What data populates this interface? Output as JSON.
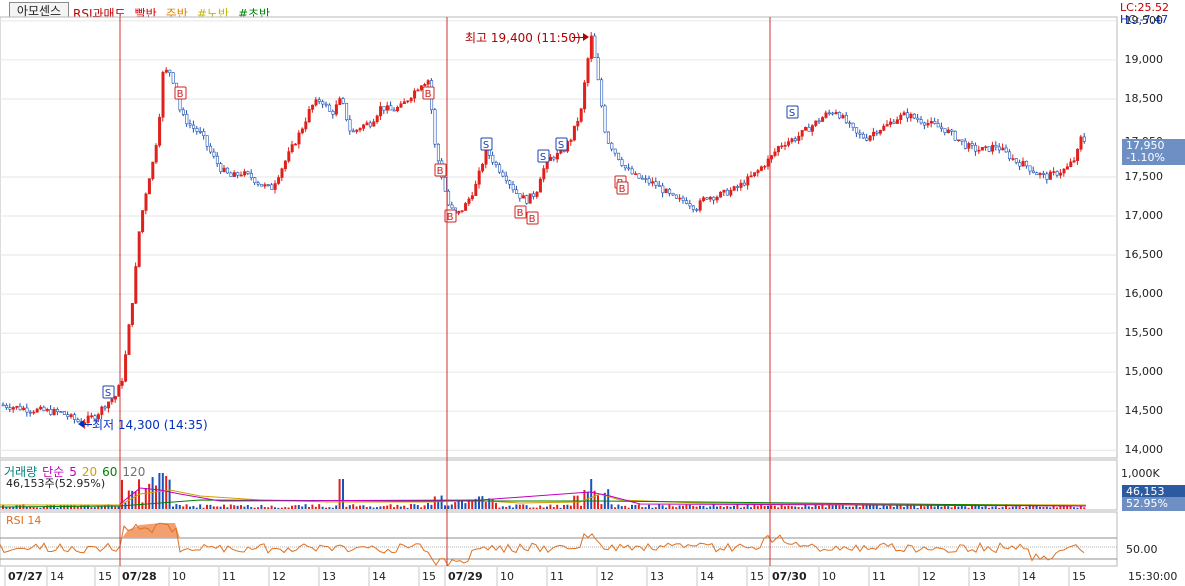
{
  "header": {
    "stock_tab": "아모센스",
    "indicators": [
      {
        "label": "RSI과매도",
        "color": "#c00000"
      },
      {
        "label": "빨반",
        "color": "#d40000"
      },
      {
        "label": "주반",
        "color": "#e08000"
      },
      {
        "label": "#노반",
        "color": "#c8b400"
      },
      {
        "label": "#초반",
        "color": "#008000"
      }
    ],
    "lc": "LC:25.52",
    "hc": "HC:-7.47"
  },
  "price_axis": [
    "19,500",
    "19,000",
    "18,500",
    "17,950",
    "17,500",
    "17,000",
    "16,500",
    "16,000",
    "15,500",
    "15,000",
    "14,500",
    "14,000"
  ],
  "price_tags": {
    "current": "17,950",
    "change": "-1.10%"
  },
  "annotations": {
    "high": "최고 19,400 (11:50)",
    "low": "최저 14,300 (14:35)"
  },
  "volume": {
    "legend": [
      {
        "label": "거래량",
        "color": "#008080"
      },
      {
        "label": "단순",
        "color": "#c000c0"
      },
      {
        "label": "5",
        "color": "#c000c0"
      },
      {
        "label": "20",
        "color": "#d0a000"
      },
      {
        "label": "60",
        "color": "#008000"
      },
      {
        "label": "120",
        "color": "#707070"
      }
    ],
    "value_text": "46,153주(52.95%)",
    "axis_top": "1,000K",
    "tag_value": "46,153",
    "tag_pct": "52.95%"
  },
  "rsi": {
    "legend": "RSI 14",
    "axis_label": "50.00"
  },
  "x_axis": [
    {
      "label": "07/27",
      "date": true
    },
    {
      "label": "14"
    },
    {
      "label": "15"
    },
    {
      "label": "07/28",
      "date": true
    },
    {
      "label": "10"
    },
    {
      "label": "11"
    },
    {
      "label": "12"
    },
    {
      "label": "13"
    },
    {
      "label": "14"
    },
    {
      "label": "15"
    },
    {
      "label": "07/29",
      "date": true
    },
    {
      "label": "10"
    },
    {
      "label": "11"
    },
    {
      "label": "12"
    },
    {
      "label": "13"
    },
    {
      "label": "14"
    },
    {
      "label": "15"
    },
    {
      "label": "07/30",
      "date": true
    },
    {
      "label": "10"
    },
    {
      "label": "11"
    },
    {
      "label": "12"
    },
    {
      "label": "13"
    },
    {
      "label": "14"
    },
    {
      "label": "15"
    }
  ],
  "x_axis_time": "15:30:00",
  "signals": [
    {
      "type": "S"
    },
    {
      "type": "B"
    },
    {
      "type": "B"
    },
    {
      "type": "B"
    },
    {
      "type": "B"
    },
    {
      "type": "S"
    },
    {
      "type": "B"
    },
    {
      "type": "B"
    },
    {
      "type": "S"
    },
    {
      "type": "S"
    },
    {
      "type": "B"
    },
    {
      "type": "B"
    },
    {
      "type": "S"
    }
  ],
  "chart_data": {
    "type": "candlestick",
    "price_ylim": [
      13900,
      19550
    ],
    "close_series": [
      [
        0,
        14580
      ],
      [
        30,
        14520
      ],
      [
        60,
        14480
      ],
      [
        80,
        14350
      ],
      [
        95,
        14450
      ],
      [
        105,
        14600
      ],
      [
        115,
        14700
      ],
      [
        122,
        14950
      ],
      [
        128,
        15600
      ],
      [
        133,
        16100
      ],
      [
        138,
        16800
      ],
      [
        143,
        17200
      ],
      [
        148,
        17500
      ],
      [
        152,
        17700
      ],
      [
        157,
        18100
      ],
      [
        162,
        18850
      ],
      [
        170,
        18850
      ],
      [
        180,
        18300
      ],
      [
        190,
        18150
      ],
      [
        200,
        18050
      ],
      [
        210,
        17800
      ],
      [
        220,
        17600
      ],
      [
        230,
        17500
      ],
      [
        240,
        17550
      ],
      [
        250,
        17500
      ],
      [
        260,
        17400
      ],
      [
        270,
        17350
      ],
      [
        280,
        17600
      ],
      [
        290,
        17850
      ],
      [
        300,
        18100
      ],
      [
        310,
        18400
      ],
      [
        320,
        18500
      ],
      [
        330,
        18300
      ],
      [
        340,
        18500
      ],
      [
        350,
        18050
      ],
      [
        360,
        18150
      ],
      [
        370,
        18200
      ],
      [
        380,
        18400
      ],
      [
        390,
        18350
      ],
      [
        400,
        18400
      ],
      [
        410,
        18550
      ],
      [
        420,
        18700
      ],
      [
        428,
        18750
      ],
      [
        433,
        17950
      ],
      [
        440,
        17550
      ],
      [
        447,
        17150
      ],
      [
        455,
        17000
      ],
      [
        465,
        17150
      ],
      [
        475,
        17400
      ],
      [
        485,
        17850
      ],
      [
        495,
        17650
      ],
      [
        505,
        17500
      ],
      [
        515,
        17300
      ],
      [
        525,
        17200
      ],
      [
        535,
        17300
      ],
      [
        540,
        17550
      ],
      [
        550,
        17750
      ],
      [
        560,
        17800
      ],
      [
        570,
        18000
      ],
      [
        580,
        18350
      ],
      [
        585,
        18850
      ],
      [
        590,
        19300
      ],
      [
        595,
        18900
      ],
      [
        600,
        18450
      ],
      [
        605,
        18000
      ],
      [
        615,
        17800
      ],
      [
        625,
        17600
      ],
      [
        635,
        17500
      ],
      [
        645,
        17450
      ],
      [
        655,
        17400
      ],
      [
        665,
        17300
      ],
      [
        675,
        17200
      ],
      [
        685,
        17200
      ],
      [
        695,
        17100
      ],
      [
        705,
        17250
      ],
      [
        715,
        17250
      ],
      [
        725,
        17300
      ],
      [
        735,
        17350
      ],
      [
        745,
        17450
      ],
      [
        755,
        17550
      ],
      [
        762,
        17650
      ],
      [
        770,
        17750
      ],
      [
        778,
        17900
      ],
      [
        785,
        17950
      ],
      [
        795,
        18000
      ],
      [
        805,
        18100
      ],
      [
        815,
        18200
      ],
      [
        825,
        18300
      ],
      [
        835,
        18350
      ],
      [
        845,
        18200
      ],
      [
        855,
        18050
      ],
      [
        865,
        18000
      ],
      [
        875,
        18100
      ],
      [
        885,
        18150
      ],
      [
        895,
        18250
      ],
      [
        905,
        18300
      ],
      [
        915,
        18250
      ],
      [
        925,
        18200
      ],
      [
        935,
        18150
      ],
      [
        945,
        18100
      ],
      [
        955,
        18000
      ],
      [
        965,
        17900
      ],
      [
        975,
        17850
      ],
      [
        985,
        17850
      ],
      [
        995,
        17900
      ],
      [
        1005,
        17800
      ],
      [
        1015,
        17700
      ],
      [
        1025,
        17650
      ],
      [
        1035,
        17550
      ],
      [
        1045,
        17500
      ],
      [
        1055,
        17550
      ],
      [
        1065,
        17600
      ],
      [
        1075,
        17750
      ],
      [
        1080,
        18000
      ],
      [
        1085,
        17950
      ]
    ],
    "volume_max": 1000000,
    "volume_last": 46153,
    "rsi_ylim": [
      0,
      100
    ]
  }
}
